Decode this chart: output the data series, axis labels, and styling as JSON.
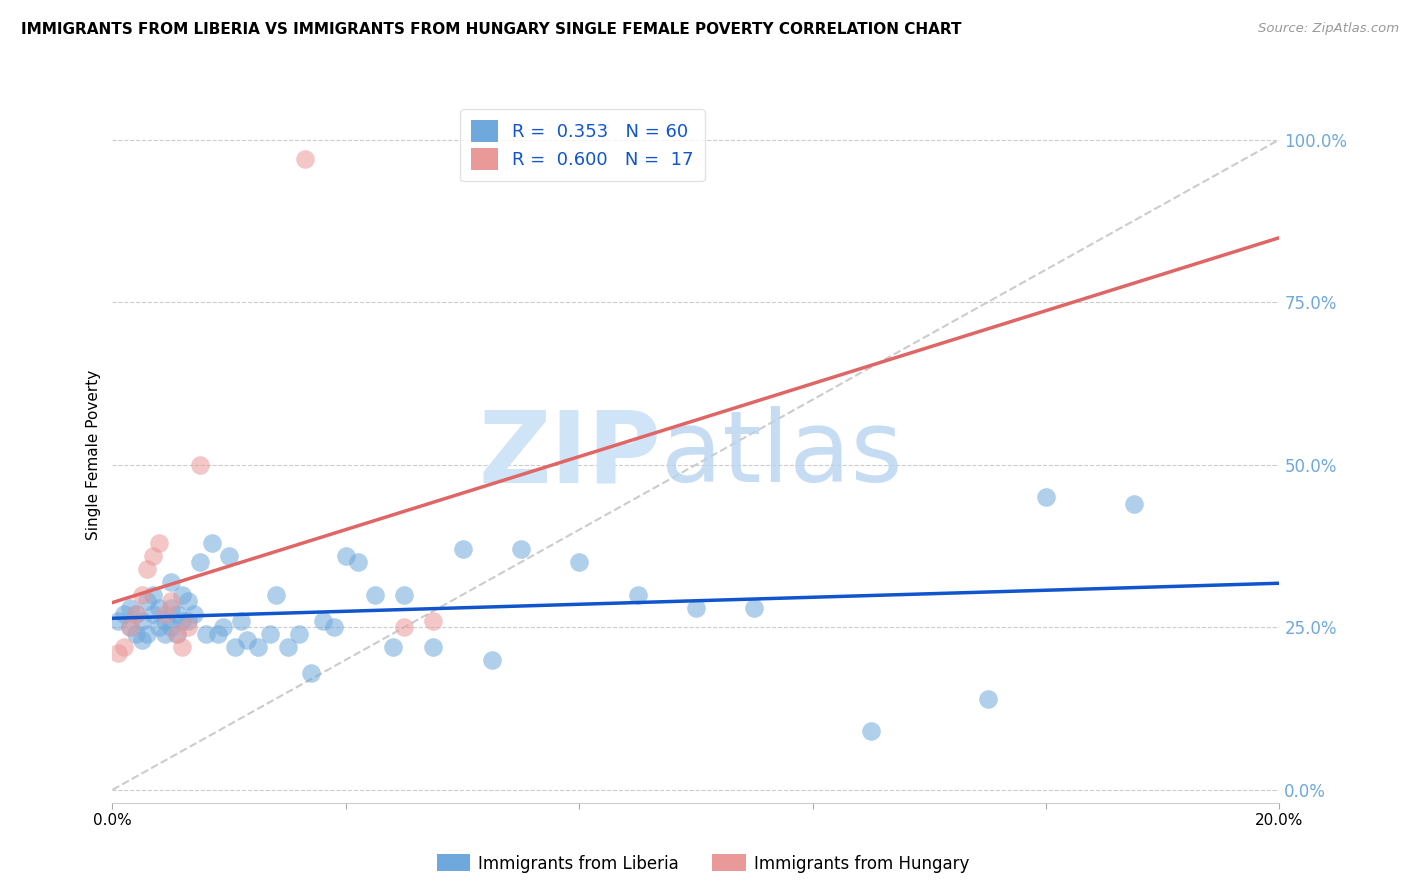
{
  "title": "IMMIGRANTS FROM LIBERIA VS IMMIGRANTS FROM HUNGARY SINGLE FEMALE POVERTY CORRELATION CHART",
  "source": "Source: ZipAtlas.com",
  "ylabel": "Single Female Poverty",
  "xlim": [
    0.0,
    0.2
  ],
  "ylim": [
    -0.02,
    1.05
  ],
  "right_yticks": [
    0.0,
    0.25,
    0.5,
    0.75,
    1.0
  ],
  "right_yticklabels": [
    "0.0%",
    "25.0%",
    "50.0%",
    "75.0%",
    "100.0%"
  ],
  "xticks": [
    0.0,
    0.04,
    0.08,
    0.12,
    0.16,
    0.2
  ],
  "xticklabels": [
    "0.0%",
    "",
    "",
    "",
    "",
    "20.0%"
  ],
  "liberia_R": 0.353,
  "liberia_N": 60,
  "hungary_R": 0.6,
  "hungary_N": 17,
  "liberia_color": "#6fa8dc",
  "hungary_color": "#ea9999",
  "liberia_line_color": "#1155cc",
  "hungary_line_color": "#e06666",
  "ref_line_color": "#cccccc",
  "grid_color": "#cccccc",
  "right_tick_color": "#6fa8dc",
  "legend_text_color": "#1155cc",
  "legend_n_color": "#cc0000",
  "liberia_x": [
    0.001,
    0.002,
    0.003,
    0.003,
    0.004,
    0.004,
    0.005,
    0.005,
    0.006,
    0.006,
    0.007,
    0.007,
    0.008,
    0.008,
    0.009,
    0.009,
    0.01,
    0.01,
    0.01,
    0.011,
    0.011,
    0.012,
    0.012,
    0.013,
    0.013,
    0.014,
    0.015,
    0.016,
    0.017,
    0.018,
    0.019,
    0.02,
    0.021,
    0.022,
    0.023,
    0.025,
    0.027,
    0.028,
    0.03,
    0.032,
    0.034,
    0.036,
    0.038,
    0.04,
    0.042,
    0.045,
    0.048,
    0.05,
    0.055,
    0.06,
    0.065,
    0.07,
    0.08,
    0.09,
    0.1,
    0.11,
    0.13,
    0.15,
    0.16,
    0.175
  ],
  "liberia_y": [
    0.26,
    0.27,
    0.25,
    0.28,
    0.24,
    0.27,
    0.23,
    0.26,
    0.24,
    0.29,
    0.27,
    0.3,
    0.25,
    0.28,
    0.26,
    0.24,
    0.25,
    0.28,
    0.32,
    0.27,
    0.24,
    0.26,
    0.3,
    0.26,
    0.29,
    0.27,
    0.35,
    0.24,
    0.38,
    0.24,
    0.25,
    0.36,
    0.22,
    0.26,
    0.23,
    0.22,
    0.24,
    0.3,
    0.22,
    0.24,
    0.18,
    0.26,
    0.25,
    0.36,
    0.35,
    0.3,
    0.22,
    0.3,
    0.22,
    0.37,
    0.2,
    0.37,
    0.35,
    0.3,
    0.28,
    0.28,
    0.09,
    0.14,
    0.45,
    0.44
  ],
  "hungary_x": [
    0.001,
    0.002,
    0.003,
    0.004,
    0.005,
    0.006,
    0.007,
    0.008,
    0.009,
    0.01,
    0.011,
    0.012,
    0.013,
    0.015,
    0.05,
    0.055,
    0.033
  ],
  "hungary_y": [
    0.21,
    0.22,
    0.25,
    0.27,
    0.3,
    0.34,
    0.36,
    0.38,
    0.27,
    0.29,
    0.24,
    0.22,
    0.25,
    0.5,
    0.25,
    0.26,
    0.97
  ],
  "ref_line_x": [
    0.0,
    0.2
  ],
  "ref_line_y": [
    0.0,
    1.0
  ]
}
